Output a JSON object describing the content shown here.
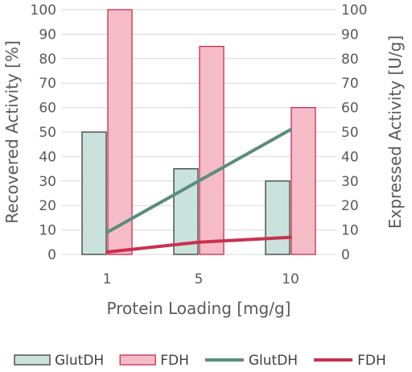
{
  "chart_data": {
    "type": "bar",
    "categories": [
      "1",
      "5",
      "10"
    ],
    "xlabel": "Protein Loading [mg/g]",
    "ylabel_left": "Recovered Activity [%]",
    "ylabel_right": "Expressed Activity [U/g]",
    "ylim_left": [
      0,
      100
    ],
    "ylim_right": [
      0,
      100
    ],
    "yticks_left": [
      "0",
      "10",
      "20",
      "30",
      "40",
      "50",
      "60",
      "70",
      "80",
      "90",
      "100"
    ],
    "yticks_right": [
      "0",
      "10",
      "20",
      "30",
      "40",
      "50",
      "60",
      "70",
      "80",
      "90",
      "100"
    ],
    "grid": true,
    "legend_position": "bottom",
    "series": [
      {
        "name": "GlutDH",
        "kind": "bar",
        "axis": "left",
        "values": [
          50,
          35,
          30
        ],
        "fill": "#c9e2dc",
        "stroke": "#3d3d3d"
      },
      {
        "name": "FDH",
        "kind": "bar",
        "axis": "left",
        "values": [
          100,
          85,
          60
        ],
        "fill": "#f5bcc8",
        "stroke": "#c2304f"
      },
      {
        "name": "GlutDH",
        "kind": "line",
        "axis": "right",
        "values": [
          9,
          30,
          51
        ],
        "color": "#5b8c7e"
      },
      {
        "name": "FDH",
        "kind": "line",
        "axis": "right",
        "values": [
          1,
          5,
          7
        ],
        "color": "#c8324f"
      }
    ]
  }
}
